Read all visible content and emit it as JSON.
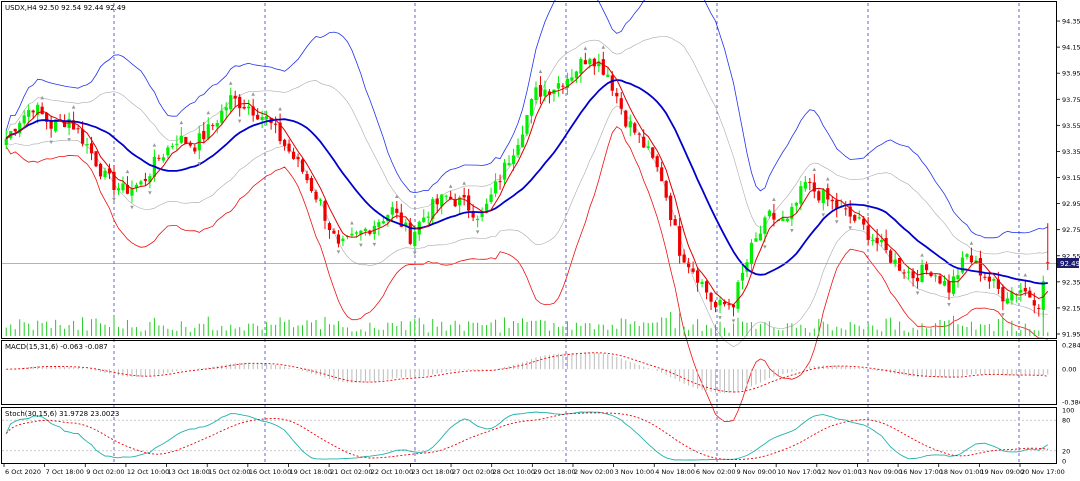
{
  "chart_data": [
    {
      "type": "candlestick",
      "pane": "main",
      "header": "USDX,H4 92.50 92.54 92.44 92.49",
      "symbol": "USDX",
      "timeframe": "H4",
      "header_ohlc": {
        "open": 92.5,
        "high": 92.54,
        "low": 92.44,
        "close": 92.49
      },
      "current_price_label": "92.49",
      "current_price": 92.49,
      "ylim": [
        91.95,
        94.45
      ],
      "y_ticks": [
        "94.35",
        "94.15",
        "93.95",
        "93.75",
        "93.55",
        "93.35",
        "93.15",
        "92.95",
        "92.75",
        "92.55",
        "92.35",
        "92.15",
        "91.95"
      ],
      "x_ticks": [
        "6 Oct 2020",
        "7 Oct 18:00",
        "9 Oct 02:00",
        "12 Oct 10:00",
        "13 Oct 18:00",
        "15 Oct 02:00",
        "16 Oct 10:00",
        "19 Oct 18:00",
        "21 Oct 02:00",
        "22 Oct 10:00",
        "23 Oct 18:00",
        "27 Oct 02:00",
        "28 Oct 10:00",
        "29 Oct 18:00",
        "2 Nov 02:00",
        "3 Nov 10:00",
        "4 Nov 18:00",
        "6 Nov 02:00",
        "9 Nov 09:00",
        "10 Nov 17:00",
        "12 Nov 01:00",
        "13 Nov 09:00",
        "16 Nov 17:00",
        "18 Nov 01:00",
        "19 Nov 09:00",
        "20 Nov 17:00"
      ],
      "close_path": [
        [
          0,
          93.45
        ],
        [
          3,
          93.6
        ],
        [
          6,
          93.7
        ],
        [
          10,
          93.55
        ],
        [
          14,
          93.6
        ],
        [
          18,
          93.4
        ],
        [
          22,
          93.15
        ],
        [
          26,
          93.05
        ],
        [
          30,
          93.1
        ],
        [
          34,
          93.3
        ],
        [
          38,
          93.45
        ],
        [
          42,
          93.4
        ],
        [
          46,
          93.55
        ],
        [
          50,
          93.75
        ],
        [
          54,
          93.7
        ],
        [
          58,
          93.6
        ],
        [
          62,
          93.4
        ],
        [
          66,
          93.2
        ],
        [
          70,
          92.95
        ],
        [
          74,
          92.6
        ],
        [
          78,
          92.7
        ],
        [
          82,
          92.8
        ],
        [
          86,
          92.9
        ],
        [
          90,
          92.7
        ],
        [
          94,
          92.9
        ],
        [
          98,
          93.0
        ],
        [
          102,
          92.95
        ],
        [
          106,
          92.85
        ],
        [
          110,
          93.15
        ],
        [
          114,
          93.45
        ],
        [
          118,
          93.8
        ],
        [
          122,
          93.85
        ],
        [
          126,
          93.95
        ],
        [
          130,
          94.1
        ],
        [
          134,
          93.95
        ],
        [
          138,
          93.6
        ],
        [
          142,
          93.4
        ],
        [
          146,
          93.15
        ],
        [
          150,
          92.6
        ],
        [
          154,
          92.4
        ],
        [
          158,
          92.15
        ],
        [
          162,
          92.2
        ],
        [
          166,
          92.6
        ],
        [
          170,
          92.85
        ],
        [
          174,
          92.8
        ],
        [
          178,
          93.1
        ],
        [
          182,
          93.0
        ],
        [
          186,
          92.9
        ],
        [
          190,
          92.8
        ],
        [
          194,
          92.65
        ],
        [
          198,
          92.5
        ],
        [
          202,
          92.4
        ],
        [
          206,
          92.45
        ],
        [
          210,
          92.3
        ],
        [
          214,
          92.55
        ],
        [
          218,
          92.4
        ],
        [
          222,
          92.25
        ],
        [
          226,
          92.3
        ],
        [
          230,
          92.2
        ],
        [
          232,
          92.45
        ]
      ]
    },
    {
      "type": "line",
      "pane": "macd",
      "header": "MACD(15,31,6) -0.063 -0.087",
      "indicator": "MACD",
      "params": "15,31,6",
      "values": [
        -0.063,
        -0.087
      ],
      "ylim": [
        -0.386,
        0.284
      ],
      "y_ticks": [
        "0.284",
        "0.00",
        "-0.386"
      ]
    },
    {
      "type": "line",
      "pane": "stoch",
      "header": "Stoch(30,15,6) 31.9728 23.0023",
      "indicator": "Stoch",
      "params": "30,15,6",
      "values": [
        31.9728,
        23.0023
      ],
      "ylim": [
        0,
        100
      ],
      "y_ticks": [
        "100",
        "80",
        "20",
        "0"
      ]
    }
  ],
  "colors": {
    "bull": "#00ee00",
    "bear": "#ee0000",
    "mid_band": "#0000cc",
    "fast_ma": "#dd0000",
    "upper_band": "#2233ee",
    "lower_band": "#ee1111",
    "grid": "#2222cc",
    "stoch_main": "#20b2aa",
    "stoch_signal": "#ee0000",
    "volume": "#22cc22"
  }
}
